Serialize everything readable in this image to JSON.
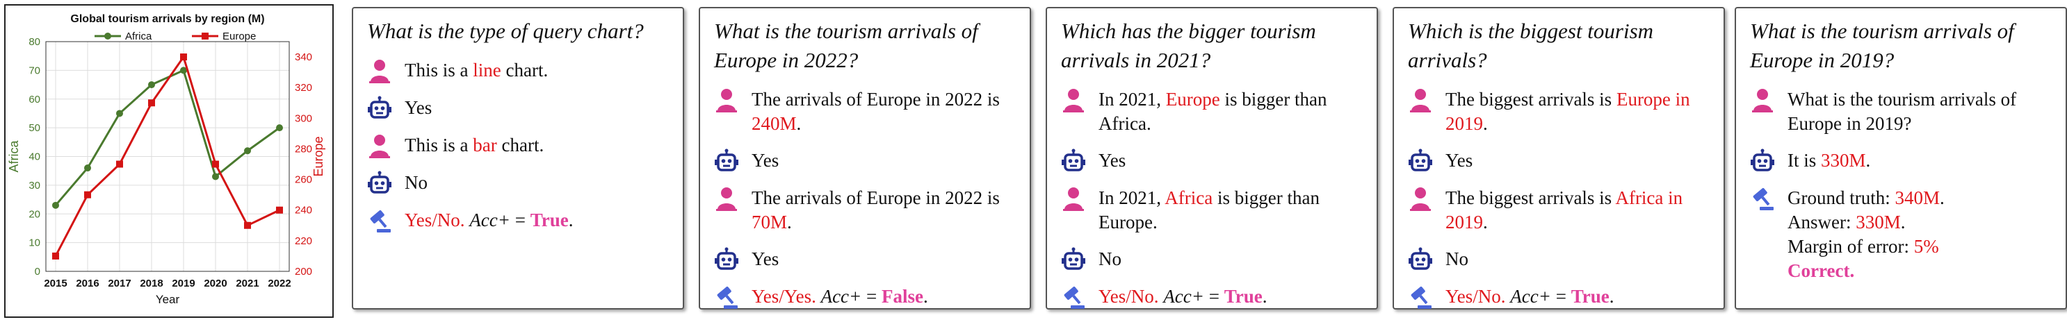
{
  "colors": {
    "africa": "#4a7a2e",
    "europe": "#d41414",
    "red_text": "#e0191e",
    "pink_text": "#e0409a",
    "person_icon": "#d63a8c",
    "robot_icon": "#23308c",
    "gavel_icon": "#4a66d9"
  },
  "chart_data": {
    "type": "line",
    "title": "Global tourism arrivals by region (M)",
    "xlabel": "Year",
    "ylabel_left": "Africa",
    "ylabel_right": "Europe",
    "x": [
      "2015",
      "2016",
      "2017",
      "2018",
      "2019",
      "2020",
      "2021",
      "2022"
    ],
    "ylim_left": [
      0,
      80
    ],
    "ylim_right": [
      200,
      350
    ],
    "yticks_left": [
      "0",
      "10",
      "20",
      "30",
      "40",
      "50",
      "60",
      "70",
      "80"
    ],
    "yticks_right": [
      "200",
      "220",
      "240",
      "260",
      "280",
      "300",
      "320",
      "340"
    ],
    "grid": true,
    "legend": "top-center",
    "series": [
      {
        "name": "Africa",
        "axis": "left",
        "marker": "circle",
        "values": [
          23,
          36,
          55,
          65,
          70,
          33,
          42,
          50
        ]
      },
      {
        "name": "Europe",
        "axis": "right",
        "marker": "square",
        "values": [
          210,
          250,
          270,
          310,
          340,
          270,
          230,
          240
        ]
      }
    ]
  },
  "cards": [
    {
      "question": "What is the type of query chart?",
      "rows": [
        {
          "icon": "person-icon",
          "parts": [
            {
              "t": "This is a "
            },
            {
              "t": "line",
              "c": "red"
            },
            {
              "t": " chart."
            }
          ]
        },
        {
          "icon": "robot-icon",
          "parts": [
            {
              "t": "Yes"
            }
          ]
        },
        {
          "icon": "person-icon",
          "parts": [
            {
              "t": "This is a "
            },
            {
              "t": "bar",
              "c": "red"
            },
            {
              "t": " chart."
            }
          ]
        },
        {
          "icon": "robot-icon",
          "parts": [
            {
              "t": "No"
            }
          ]
        },
        {
          "icon": "gavel-icon",
          "parts": [
            {
              "t": "Yes/No.",
              "c": "red"
            },
            {
              "t": "  "
            },
            {
              "t": "Acc+",
              "c": "it"
            },
            {
              "t": " = "
            },
            {
              "t": "True",
              "c": "pink"
            },
            {
              "t": "."
            }
          ]
        }
      ]
    },
    {
      "question": "What is the tourism arrivals of Europe in 2022?",
      "rows": [
        {
          "icon": "person-icon",
          "parts": [
            {
              "t": "The arrivals of Europe in 2022 is "
            },
            {
              "t": "240M",
              "c": "red"
            },
            {
              "t": "."
            }
          ]
        },
        {
          "icon": "robot-icon",
          "parts": [
            {
              "t": "Yes"
            }
          ]
        },
        {
          "icon": "person-icon",
          "parts": [
            {
              "t": "The arrivals of Europe in 2022 is "
            },
            {
              "t": "70M",
              "c": "red"
            },
            {
              "t": "."
            }
          ]
        },
        {
          "icon": "robot-icon",
          "parts": [
            {
              "t": "Yes"
            }
          ]
        },
        {
          "icon": "gavel-icon",
          "parts": [
            {
              "t": "Yes/Yes.",
              "c": "red"
            },
            {
              "t": "  "
            },
            {
              "t": "Acc+",
              "c": "it"
            },
            {
              "t": " = "
            },
            {
              "t": "False",
              "c": "pink"
            },
            {
              "t": "."
            }
          ]
        }
      ]
    },
    {
      "question": "Which has the bigger tourism arrivals in 2021?",
      "rows": [
        {
          "icon": "person-icon",
          "parts": [
            {
              "t": "In 2021, "
            },
            {
              "t": "Europe",
              "c": "red"
            },
            {
              "t": " is bigger than Africa."
            }
          ]
        },
        {
          "icon": "robot-icon",
          "parts": [
            {
              "t": "Yes"
            }
          ]
        },
        {
          "icon": "person-icon",
          "parts": [
            {
              "t": "In 2021, "
            },
            {
              "t": "Africa",
              "c": "red"
            },
            {
              "t": " is bigger than Europe."
            }
          ]
        },
        {
          "icon": "robot-icon",
          "parts": [
            {
              "t": "No"
            }
          ]
        },
        {
          "icon": "gavel-icon",
          "parts": [
            {
              "t": "Yes/No.",
              "c": "red"
            },
            {
              "t": "  "
            },
            {
              "t": "Acc+",
              "c": "it"
            },
            {
              "t": " = "
            },
            {
              "t": "True",
              "c": "pink"
            },
            {
              "t": "."
            }
          ]
        }
      ]
    },
    {
      "question": "Which is the biggest tourism arrivals?",
      "rows": [
        {
          "icon": "person-icon",
          "parts": [
            {
              "t": "The biggest arrivals is "
            },
            {
              "t": "Europe in 2019",
              "c": "red"
            },
            {
              "t": "."
            }
          ]
        },
        {
          "icon": "robot-icon",
          "parts": [
            {
              "t": "Yes"
            }
          ]
        },
        {
          "icon": "person-icon",
          "parts": [
            {
              "t": "The biggest arrivals is "
            },
            {
              "t": "Africa in 2019",
              "c": "red"
            },
            {
              "t": "."
            }
          ]
        },
        {
          "icon": "robot-icon",
          "parts": [
            {
              "t": "No"
            }
          ]
        },
        {
          "icon": "gavel-icon",
          "parts": [
            {
              "t": "Yes/No.",
              "c": "red"
            },
            {
              "t": "  "
            },
            {
              "t": "Acc+",
              "c": "it"
            },
            {
              "t": " = "
            },
            {
              "t": "True",
              "c": "pink"
            },
            {
              "t": "."
            }
          ]
        }
      ]
    },
    {
      "question": "What is the tourism arrivals of Europe in 2019?",
      "rows": [
        {
          "icon": "person-icon",
          "parts": [
            {
              "t": "What is the tourism arrivals of Europe in 2019?"
            }
          ]
        },
        {
          "icon": "robot-icon",
          "parts": [
            {
              "t": "It is "
            },
            {
              "t": "330M",
              "c": "red"
            },
            {
              "t": "."
            }
          ]
        },
        {
          "icon": "gavel-icon",
          "lines": [
            [
              {
                "t": "Ground truth: "
              },
              {
                "t": "340M",
                "c": "red"
              },
              {
                "t": "."
              }
            ],
            [
              {
                "t": "Answer: "
              },
              {
                "t": "330M",
                "c": "red"
              },
              {
                "t": "."
              }
            ],
            [
              {
                "t": "Margin of error: "
              },
              {
                "t": "5%",
                "c": "red"
              }
            ],
            [
              {
                "t": "Correct.",
                "c": "pink"
              }
            ]
          ]
        }
      ]
    }
  ]
}
